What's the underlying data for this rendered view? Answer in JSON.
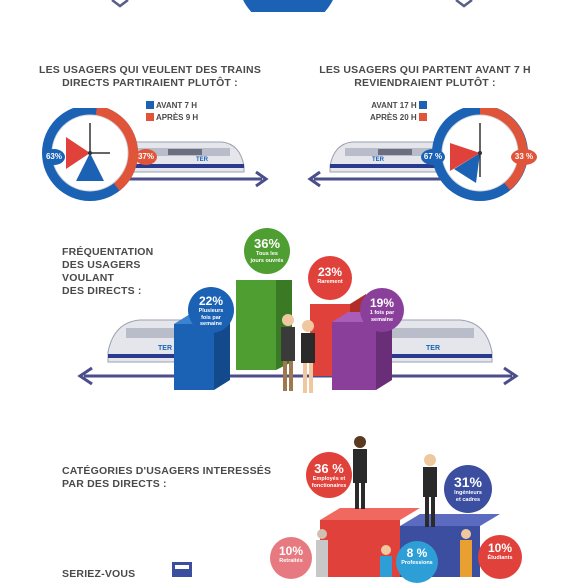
{
  "section1": {
    "left": {
      "title_line1": "LES USAGERS QUI VEULENT DES TRAINS",
      "title_line2": "DIRECTS PARTIRAIENT PLUTÔT :",
      "legend": [
        {
          "label": "AVANT 7 H",
          "color": "#1b62b5"
        },
        {
          "label": "APRÈS 9 H",
          "color": "#e0553a"
        }
      ],
      "pct_blue": "63%",
      "pct_red": "37%",
      "blue_value": 63,
      "red_value": 37
    },
    "right": {
      "title_line1": "LES USAGERS QUI PARTENT AVANT 7 H",
      "title_line2": "REVIENDRAIENT PLUTÔT :",
      "legend": [
        {
          "label": "AVANT  17 H",
          "color": "#1b62b5"
        },
        {
          "label": "APRÈS 20 H",
          "color": "#e0553a"
        }
      ],
      "pct_blue": "67 %",
      "pct_red": "33 %",
      "blue_value": 67,
      "red_value": 33
    }
  },
  "section2": {
    "title_line1": "FRÉQUENTATION",
    "title_line2": "DES USAGERS",
    "title_line3": "VOULANT",
    "title_line4": "DES DIRECTS :",
    "bars": [
      {
        "pct": "22%",
        "text": [
          "Plusieurs",
          "fois par",
          "semaine"
        ],
        "color": "#1b62b5",
        "value": 22
      },
      {
        "pct": "36%",
        "text": [
          "Tous les",
          "jours ouvrés"
        ],
        "color": "#4f9e32",
        "value": 36
      },
      {
        "pct": "23%",
        "text": [
          "Rarement"
        ],
        "color": "#e0413a",
        "value": 23
      },
      {
        "pct": "19%",
        "text": [
          "1 fois par",
          "semaine"
        ],
        "color": "#8a3f9a",
        "value": 19
      }
    ]
  },
  "section3": {
    "title_line1": "CATÉGORIES D'USAGERS INTERESSÉS",
    "title_line2": "PAR DES DIRECTS :",
    "items": [
      {
        "pct": "36 %",
        "text": [
          "Employés et",
          "fonctionaires"
        ],
        "color": "#e0413a",
        "value": 36
      },
      {
        "pct": "31%",
        "text": [
          "Ingénieurs",
          "et cadres"
        ],
        "color": "#3b4ea0",
        "value": 31
      },
      {
        "pct": "10%",
        "text": [
          "Retraités"
        ],
        "color": "#e77a80",
        "value": 10
      },
      {
        "pct": "8 %",
        "text": [
          "Professions"
        ],
        "color": "#2e9fd6",
        "value": 8
      },
      {
        "pct": "10%",
        "text": [
          "Étudiants"
        ],
        "color": "#e0413a",
        "value": 10
      }
    ]
  },
  "section4": {
    "title_partial": "SERIEZ-VOUS"
  },
  "train_logo": "TER"
}
